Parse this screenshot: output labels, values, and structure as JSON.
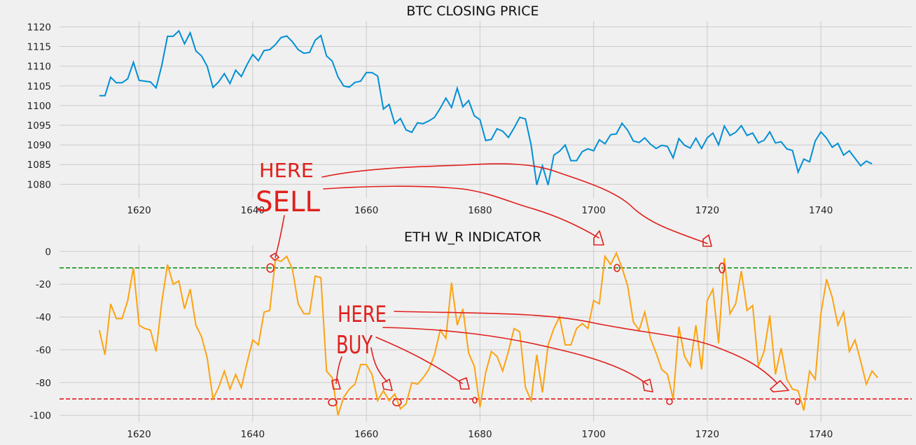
{
  "chart_data": [
    {
      "type": "line",
      "title": "BTC CLOSING PRICE",
      "xlabel": "",
      "ylabel": "",
      "xlim": [
        1606,
        1756
      ],
      "ylim": [
        1076.5,
        1121.5
      ],
      "x_ticks": [
        1620,
        1640,
        1660,
        1680,
        1700,
        1720,
        1740
      ],
      "y_ticks": [
        1080,
        1085,
        1090,
        1095,
        1100,
        1105,
        1110,
        1115,
        1120
      ],
      "grid": true,
      "line_color": "#008fd5",
      "series": [
        {
          "x_start": 1613,
          "values": [
            1102.5,
            1102.5,
            1107.2,
            1105.8,
            1105.8,
            1106.8,
            1111,
            1106.4,
            1106.2,
            1106,
            1104.5,
            1110.2,
            1117.6,
            1117.6,
            1119,
            1115.7,
            1118.5,
            1113.9,
            1112.6,
            1110,
            1104.6,
            1106,
            1108.1,
            1105.6,
            1109,
            1107.4,
            1110.4,
            1113,
            1111.4,
            1114,
            1114.2,
            1115.5,
            1117.3,
            1117.7,
            1116.2,
            1114.2,
            1113.3,
            1113.5,
            1116.6,
            1117.8,
            1112.6,
            1111.3,
            1107.3,
            1105,
            1104.7,
            1105.9,
            1106.2,
            1108.4,
            1108.4,
            1107.5,
            1099.1,
            1100.3,
            1095.4,
            1096.7,
            1093.8,
            1093.2,
            1095.6,
            1095.4,
            1096.1,
            1097,
            1099.3,
            1101.9,
            1099.5,
            1104.4,
            1099.7,
            1101.3,
            1097.4,
            1096.4,
            1091.1,
            1091.4,
            1094.1,
            1093.5,
            1091.9,
            1094.3,
            1097,
            1096.6,
            1090,
            1079.8,
            1084.7,
            1079.8,
            1087.4,
            1088.4,
            1090,
            1086,
            1086,
            1088.3,
            1089,
            1088.5,
            1091.3,
            1090.3,
            1092.6,
            1092.8,
            1095.5,
            1093.7,
            1091,
            1090.6,
            1091.8,
            1090.2,
            1089.1,
            1089.9,
            1089.6,
            1086.7,
            1091.6,
            1089.9,
            1089.2,
            1091.7,
            1089.1,
            1091.8,
            1093,
            1090,
            1094.8,
            1092.4,
            1093.2,
            1094.9,
            1092.4,
            1093,
            1090.5,
            1091.2,
            1093.3,
            1090.5,
            1090.8,
            1089,
            1088.6,
            1083.1,
            1086.4,
            1085.7,
            1091,
            1093.3,
            1091.7,
            1089.4,
            1090.4,
            1087.4,
            1088.5,
            1086.6,
            1084.7,
            1085.9,
            1085.2
          ]
        }
      ]
    },
    {
      "type": "line",
      "title": "ETH W_R INDICATOR",
      "xlabel": "",
      "ylabel": "",
      "xlim": [
        1606,
        1756
      ],
      "ylim": [
        -104,
        4
      ],
      "x_ticks": [
        1620,
        1640,
        1660,
        1680,
        1700,
        1720,
        1740
      ],
      "y_ticks": [
        0,
        -20,
        -40,
        -60,
        -80,
        -100
      ],
      "grid": true,
      "line_color": "#fca311",
      "overbought_level": -10,
      "overbought_color": "#109618",
      "oversold_level": -90,
      "oversold_color": "#e41a1c",
      "series": [
        {
          "x_start": 1613,
          "values": [
            -48,
            -63,
            -32,
            -41,
            -41,
            -30,
            -10,
            -45,
            -47,
            -48,
            -61,
            -31,
            -8,
            -20,
            -18,
            -35,
            -23,
            -45,
            -52,
            -65,
            -90,
            -83,
            -73,
            -84,
            -75,
            -83,
            -68,
            -54,
            -57,
            -37,
            -36,
            -5,
            -6,
            -3,
            -11,
            -32,
            -38,
            -38,
            -15,
            -16,
            -73,
            -77,
            -100,
            -89,
            -84,
            -81,
            -69,
            -69,
            -75,
            -91,
            -85,
            -91,
            -87,
            -96,
            -93,
            -80,
            -81,
            -77,
            -72,
            -63,
            -48,
            -53,
            -19,
            -45,
            -35,
            -62,
            -70,
            -95,
            -74,
            -61,
            -64,
            -73,
            -61,
            -47,
            -49,
            -83,
            -91,
            -63,
            -86,
            -57,
            -47,
            -40,
            -57,
            -57,
            -47,
            -44,
            -47,
            -30,
            -32,
            -3,
            -8,
            -1,
            -10,
            -21,
            -43,
            -48,
            -37,
            -53,
            -62,
            -72,
            -75,
            -90,
            -46,
            -64,
            -70,
            -45,
            -72,
            -30,
            -23,
            -56,
            -4,
            -38,
            -32,
            -12,
            -36,
            -33,
            -70,
            -61,
            -39,
            -75,
            -59,
            -78,
            -84,
            -85,
            -97,
            -73,
            -78,
            -38,
            -17,
            -28,
            -45,
            -37,
            -61,
            -54,
            -67,
            -81,
            -73,
            -77
          ]
        }
      ]
    }
  ],
  "annotations": {
    "sell_label_1": "HERE",
    "sell_label_2": "SELL",
    "buy_label_1": "HERE",
    "buy_label_2": "BUY"
  }
}
